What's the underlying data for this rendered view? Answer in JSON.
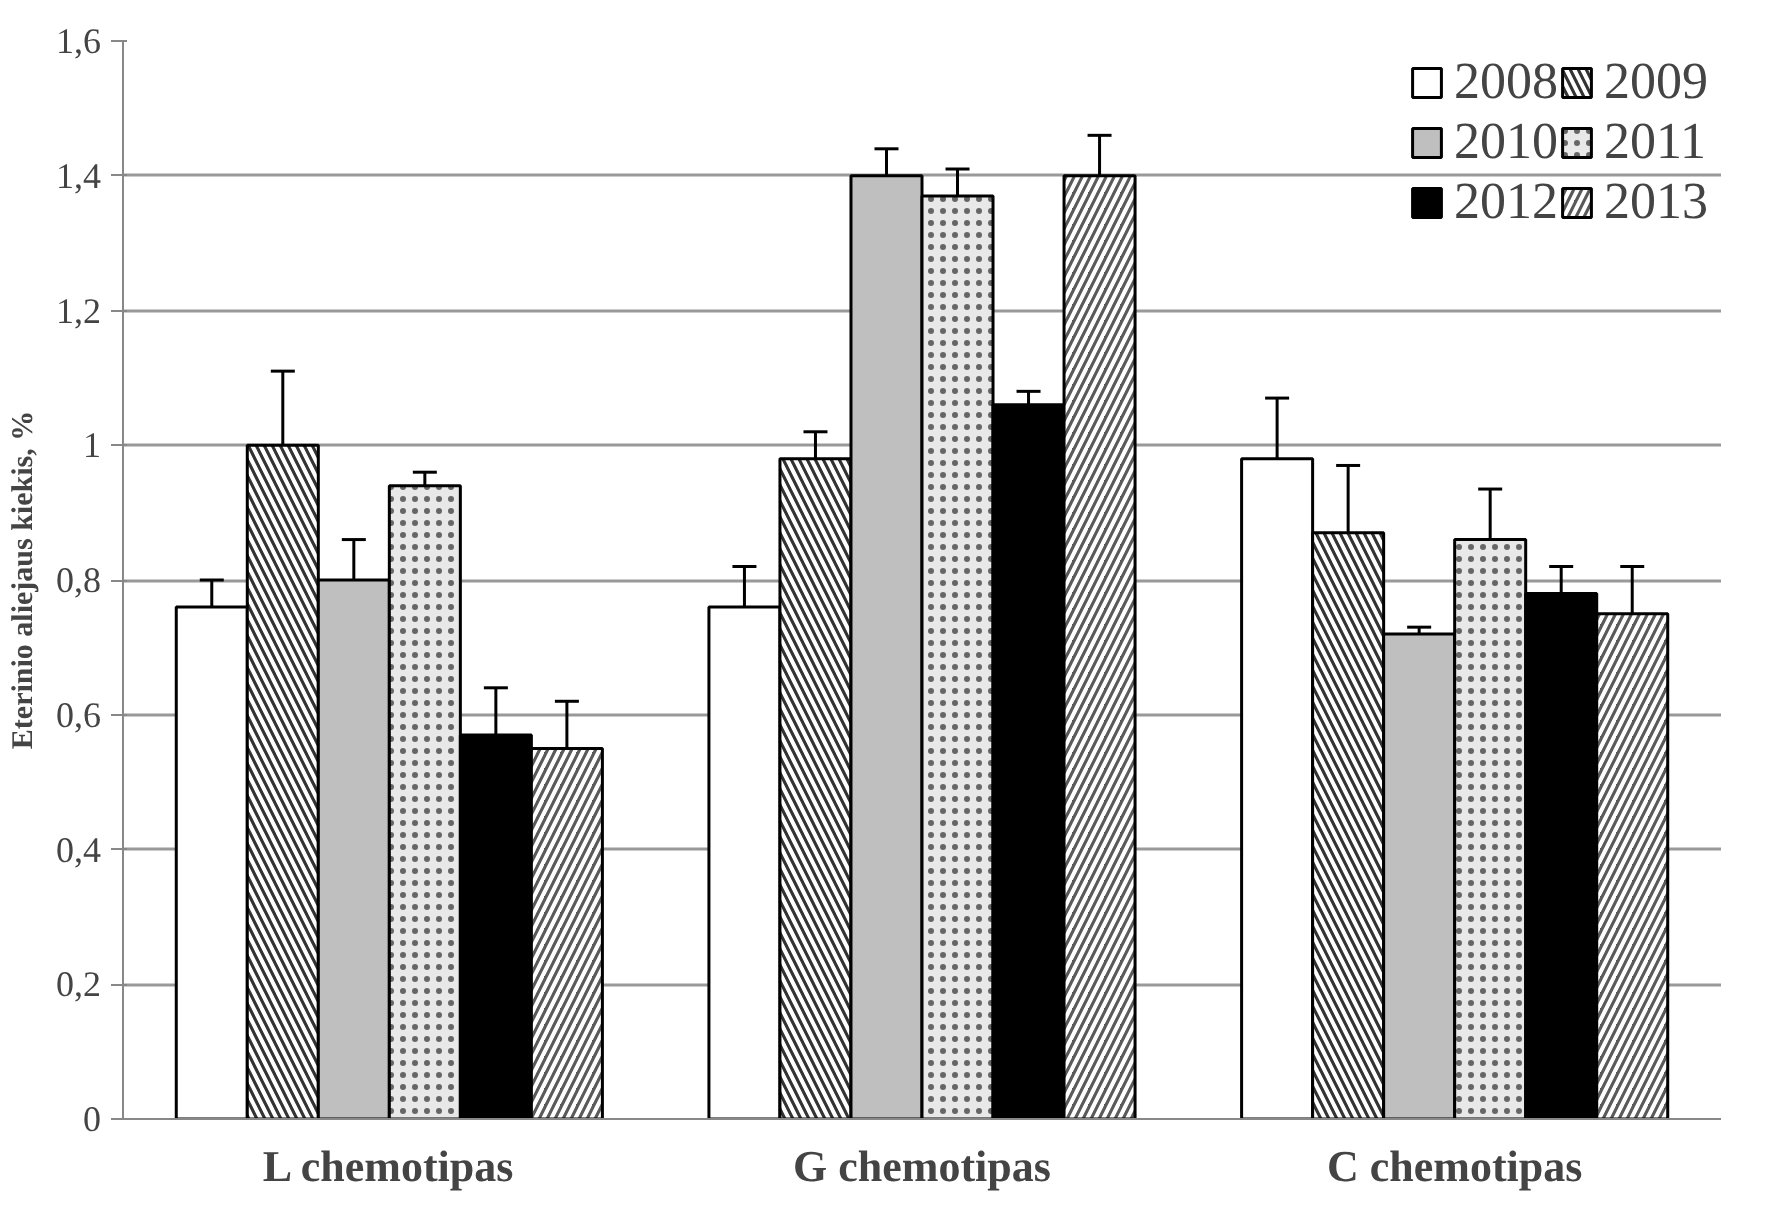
{
  "chart_data": {
    "type": "bar",
    "ylabel": "Eterinio aliejaus kiekis, %",
    "categories": [
      "L chemotipas",
      "G chemotipas",
      "C chemotipas"
    ],
    "series": [
      {
        "name": "2008",
        "color": "#ffffff",
        "values": [
          0.76,
          0.76,
          0.98
        ],
        "errors": [
          0.04,
          0.06,
          0.09
        ]
      },
      {
        "name": "2009",
        "color": "#333333",
        "values": [
          1.0,
          0.98,
          0.87
        ],
        "errors": [
          0.11,
          0.04,
          0.1
        ]
      },
      {
        "name": "2010",
        "color": "#bfbfbf",
        "values": [
          0.8,
          1.4,
          0.72
        ],
        "errors": [
          0.06,
          0.04,
          0.01
        ]
      },
      {
        "name": "2011",
        "color": "#e8e8e8",
        "values": [
          0.94,
          1.37,
          0.86
        ],
        "errors": [
          0.02,
          0.04,
          0.075
        ]
      },
      {
        "name": "2012",
        "color": "#000000",
        "values": [
          0.57,
          1.06,
          0.78
        ],
        "errors": [
          0.07,
          0.02,
          0.04
        ]
      },
      {
        "name": "2013",
        "color": "#5a5a5a",
        "values": [
          0.55,
          1.4,
          0.75
        ],
        "errors": [
          0.07,
          0.06,
          0.07
        ]
      }
    ],
    "ylim": [
      0,
      1.6
    ],
    "yticks": [
      0,
      {
        "value": 0.2,
        "label": "0,2"
      },
      {
        "value": 0.4,
        "label": "0,4"
      },
      {
        "value": 0.6,
        "label": "0,6"
      },
      {
        "value": 0.8,
        "label": "0,8"
      },
      1,
      {
        "value": 1.2,
        "label": "1,2"
      },
      {
        "value": 1.4,
        "label": "1,4"
      },
      {
        "value": 1.6,
        "label": "1,6"
      }
    ],
    "grid": "y",
    "legend": "top right"
  }
}
